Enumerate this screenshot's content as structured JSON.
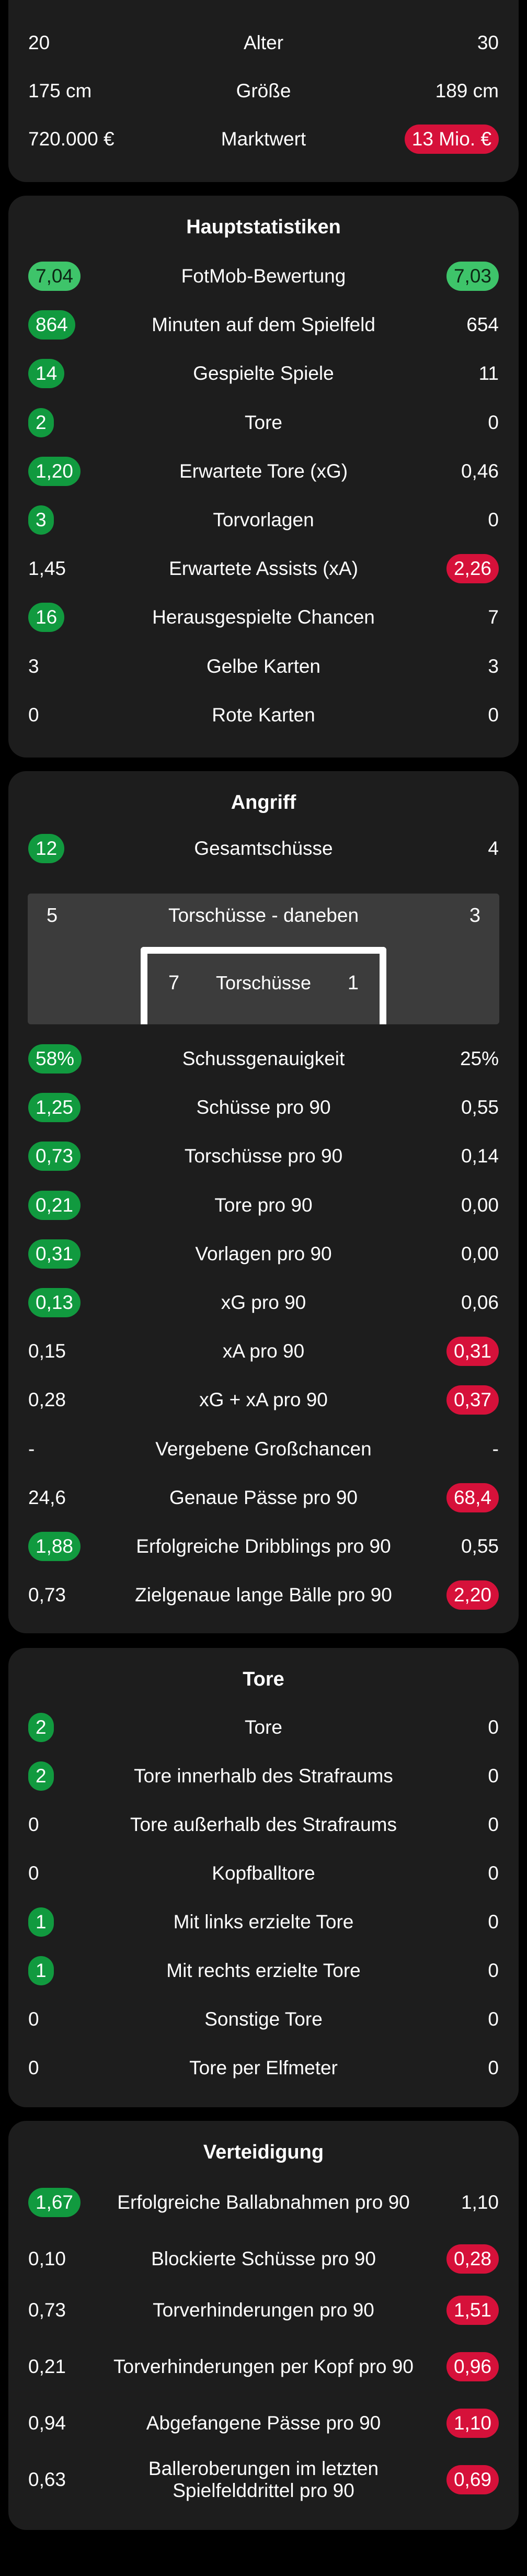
{
  "personal": [
    {
      "label": "Alter",
      "left": "20",
      "right": "30"
    },
    {
      "label": "Größe",
      "left": "175 cm",
      "right": "189 cm"
    },
    {
      "label": "Marktwert",
      "left": "720.000 €",
      "right": "13 Mio. €",
      "right_badge": "red"
    }
  ],
  "main_stats": {
    "title": "Hauptstatistiken",
    "rows": [
      {
        "label": "FotMob-Bewertung",
        "left": "7,04",
        "right": "7,03",
        "left_badge": "green-light",
        "right_badge": "green-light"
      },
      {
        "label": "Minuten auf dem Spielfeld",
        "left": "864",
        "right": "654",
        "left_badge": "green"
      },
      {
        "label": "Gespielte Spiele",
        "left": "14",
        "right": "11",
        "left_badge": "green"
      },
      {
        "label": "Tore",
        "left": "2",
        "right": "0",
        "left_badge": "green"
      },
      {
        "label": "Erwartete Tore (xG)",
        "left": "1,20",
        "right": "0,46",
        "left_badge": "green"
      },
      {
        "label": "Torvorlagen",
        "left": "3",
        "right": "0",
        "left_badge": "green"
      },
      {
        "label": "Erwartete Assists (xA)",
        "left": "1,45",
        "right": "2,26",
        "right_badge": "red"
      },
      {
        "label": "Herausgespielte Chancen",
        "left": "16",
        "right": "7",
        "left_badge": "green"
      },
      {
        "label": "Gelbe Karten",
        "left": "3",
        "right": "3"
      },
      {
        "label": "Rote Karten",
        "left": "0",
        "right": "0"
      }
    ]
  },
  "attack": {
    "title": "Angriff",
    "total_shots": {
      "label": "Gesamtschüsse",
      "left": "12",
      "right": "4",
      "left_badge": "green"
    },
    "shots_off": {
      "label": "Torschüsse - daneben",
      "left": "5",
      "right": "3"
    },
    "shots_on": {
      "label": "Torschüsse",
      "left": "7",
      "right": "1"
    },
    "rows": [
      {
        "label": "Schussgenauigkeit",
        "left": "58%",
        "right": "25%",
        "left_badge": "green"
      },
      {
        "label": "Schüsse pro 90",
        "left": "1,25",
        "right": "0,55",
        "left_badge": "green"
      },
      {
        "label": "Torschüsse pro 90",
        "left": "0,73",
        "right": "0,14",
        "left_badge": "green"
      },
      {
        "label": "Tore pro 90",
        "left": "0,21",
        "right": "0,00",
        "left_badge": "green"
      },
      {
        "label": "Vorlagen pro 90",
        "left": "0,31",
        "right": "0,00",
        "left_badge": "green"
      },
      {
        "label": "xG pro 90",
        "left": "0,13",
        "right": "0,06",
        "left_badge": "green"
      },
      {
        "label": "xA pro 90",
        "left": "0,15",
        "right": "0,31",
        "right_badge": "red"
      },
      {
        "label": "xG + xA pro 90",
        "left": "0,28",
        "right": "0,37",
        "right_badge": "red"
      },
      {
        "label": "Vergebene Großchancen",
        "left": "-",
        "right": "-"
      },
      {
        "label": "Genaue Pässe pro 90",
        "left": "24,6",
        "right": "68,4",
        "right_badge": "red"
      },
      {
        "label": "Erfolgreiche Dribblings pro 90",
        "left": "1,88",
        "right": "0,55",
        "left_badge": "green"
      },
      {
        "label": "Zielgenaue lange Bälle pro 90",
        "left": "0,73",
        "right": "2,20",
        "right_badge": "red"
      }
    ]
  },
  "goals": {
    "title": "Tore",
    "rows": [
      {
        "label": "Tore",
        "left": "2",
        "right": "0",
        "left_badge": "green"
      },
      {
        "label": "Tore innerhalb des Strafraums",
        "left": "2",
        "right": "0",
        "left_badge": "green"
      },
      {
        "label": "Tore außerhalb des Strafraums",
        "left": "0",
        "right": "0"
      },
      {
        "label": "Kopfballtore",
        "left": "0",
        "right": "0"
      },
      {
        "label": "Mit links erzielte Tore",
        "left": "1",
        "right": "0",
        "left_badge": "green"
      },
      {
        "label": "Mit rechts erzielte Tore",
        "left": "1",
        "right": "0",
        "left_badge": "green"
      },
      {
        "label": "Sonstige Tore",
        "left": "0",
        "right": "0"
      },
      {
        "label": "Tore per Elfmeter",
        "left": "0",
        "right": "0"
      }
    ]
  },
  "defense": {
    "title": "Verteidigung",
    "rows": [
      {
        "label": "Erfolgreiche Ballabnahmen pro 90",
        "left": "1,67",
        "right": "1,10",
        "left_badge": "green"
      },
      {
        "label": "Blockierte Schüsse pro 90",
        "left": "0,10",
        "right": "0,28",
        "right_badge": "red"
      },
      {
        "label": "Torverhinderungen pro 90",
        "left": "0,73",
        "right": "1,51",
        "right_badge": "red"
      },
      {
        "label": "Torverhinderungen per Kopf pro 90",
        "left": "0,21",
        "right": "0,96",
        "right_badge": "red"
      },
      {
        "label": "Abgefangene Pässe pro 90",
        "left": "0,94",
        "right": "1,10",
        "right_badge": "red"
      },
      {
        "label": "Balleroberungen im letzten Spielfelddrittel pro 90",
        "left": "0,63",
        "right": "0,69",
        "right_badge": "red"
      }
    ]
  },
  "colors": {
    "card": "#1d1d1d",
    "background": "#000000",
    "badge_green": "#119a3f",
    "badge_green_light": "#3ec46a",
    "badge_red": "#d6113a",
    "goal_box": "#3c3c3c"
  }
}
